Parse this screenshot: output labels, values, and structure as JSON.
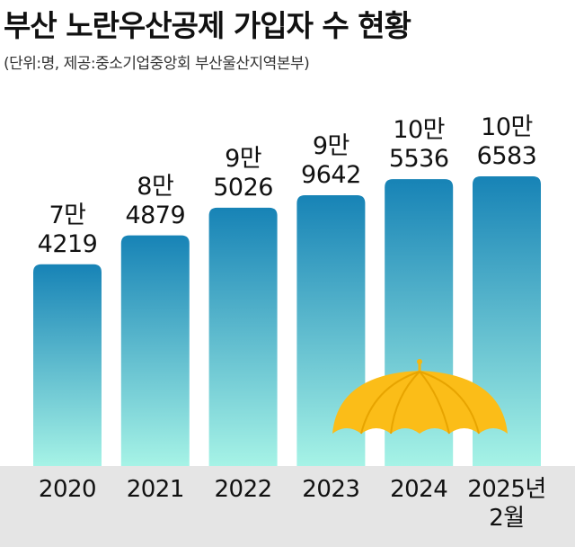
{
  "chart_data": {
    "type": "bar",
    "title": "부산 노란우산공제 가입자 수 현황",
    "subtitle": "(단위:명, 제공:중소기업중앙회 부산울산지역본부)",
    "categories": [
      "2020",
      "2021",
      "2022",
      "2023",
      "2024",
      "2025년\n2월"
    ],
    "values": [
      74219,
      84879,
      95026,
      99642,
      105536,
      106583
    ],
    "value_labels": [
      "7만\n4219",
      "8만\n4879",
      "9만\n5026",
      "9만\n9642",
      "10만\n5536",
      "10만\n6583"
    ],
    "color": "#1783b6"
  }
}
